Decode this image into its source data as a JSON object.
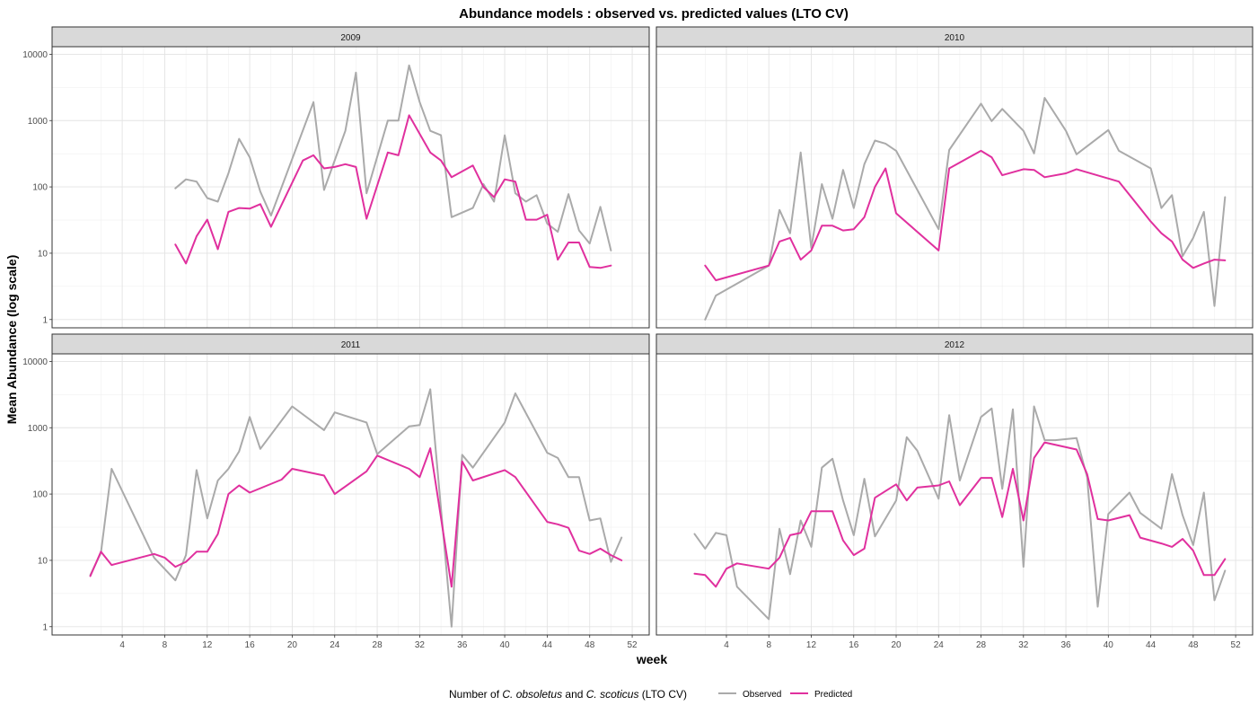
{
  "chart_data": {
    "type": "line",
    "title": "Abundance models : observed vs. predicted values (LTO CV)",
    "xlabel": "week",
    "ylabel": "Mean Abundance (log scale)",
    "y_scale": "log10",
    "ylim": [
      0.75,
      13000
    ],
    "xlim": [
      -2.6,
      53.6
    ],
    "x_ticks": [
      4,
      8,
      12,
      16,
      20,
      24,
      28,
      32,
      36,
      40,
      44,
      48,
      52
    ],
    "y_ticks": [
      1,
      10,
      100,
      1000,
      10000
    ],
    "y_tick_labels": [
      "1",
      "10",
      "100",
      "1000",
      "10000"
    ],
    "grid": true,
    "legend_position": "bottom",
    "legend_title_parts": [
      {
        "text": "Number of ",
        "italic": false
      },
      {
        "text": "C. obsoletus",
        "italic": true
      },
      {
        "text": " and ",
        "italic": false
      },
      {
        "text": "C. scoticus",
        "italic": true
      },
      {
        "text": " (LTO CV)",
        "italic": false
      }
    ],
    "series_colors": {
      "Observed": "#aaaaaa",
      "Predicted": "#e0309e"
    },
    "panels": [
      {
        "label": "2009",
        "series": [
          {
            "name": "Observed",
            "x": [
              9,
              10,
              11,
              12,
              13,
              14,
              15,
              16,
              17,
              18,
              22,
              23,
              25,
              26,
              27,
              29,
              30,
              31,
              32,
              33,
              34,
              35,
              37,
              38,
              39,
              40,
              41,
              42,
              43,
              44,
              45,
              46,
              47,
              48,
              49,
              50
            ],
            "y": [
              95,
              130,
              120,
              68,
              60,
              160,
              530,
              280,
              85,
              37,
              1900,
              90,
              700,
              5300,
              80,
              1000,
              1000,
              6800,
              1900,
              700,
              600,
              35,
              48,
              110,
              60,
              600,
              80,
              60,
              75,
              28,
              21,
              78,
              22,
              14,
              50,
              11
            ]
          },
          {
            "name": "Predicted",
            "x": [
              9,
              10,
              11,
              12,
              13,
              14,
              15,
              16,
              17,
              18,
              21,
              22,
              23,
              24,
              25,
              26,
              27,
              29,
              30,
              31,
              33,
              34,
              35,
              37,
              38,
              39,
              40,
              41,
              42,
              43,
              44,
              45,
              46,
              47,
              48,
              49,
              50
            ],
            "y": [
              13.5,
              7,
              18,
              32,
              11.5,
              42,
              48,
              47,
              55,
              25,
              250,
              300,
              190,
              200,
              220,
              200,
              33,
              330,
              300,
              1200,
              330,
              250,
              140,
              210,
              100,
              70,
              130,
              120,
              32,
              32,
              38,
              8,
              14.5,
              14.5,
              6.2,
              6,
              6.5
            ]
          }
        ]
      },
      {
        "label": "2010",
        "series": [
          {
            "name": "Observed",
            "x": [
              2,
              3,
              8,
              9,
              10,
              11,
              12,
              13,
              14,
              15,
              16,
              17,
              18,
              19,
              20,
              24,
              25,
              28,
              29,
              30,
              32,
              33,
              34,
              36,
              37,
              40,
              41,
              44,
              45,
              46,
              47,
              48,
              49,
              50,
              51
            ],
            "y": [
              1,
              2.3,
              6.5,
              45,
              20,
              330,
              12,
              110,
              33,
              180,
              48,
              220,
              500,
              450,
              350,
              23,
              360,
              1800,
              980,
              1500,
              700,
              320,
              2200,
              700,
              310,
              720,
              350,
              190,
              48,
              75,
              9,
              17,
              42,
              1.6,
              70
            ]
          },
          {
            "name": "Predicted",
            "x": [
              2,
              3,
              8,
              9,
              10,
              11,
              12,
              13,
              14,
              15,
              16,
              17,
              18,
              19,
              20,
              24,
              25,
              28,
              29,
              30,
              32,
              33,
              34,
              36,
              37,
              41,
              44,
              45,
              46,
              47,
              48,
              49,
              50,
              51
            ],
            "y": [
              6.5,
              3.9,
              6.5,
              15,
              17,
              8,
              11,
              26,
              26,
              22,
              23,
              35,
              100,
              190,
              40,
              11,
              190,
              350,
              280,
              150,
              185,
              180,
              140,
              160,
              185,
              120,
              30,
              20,
              15,
              8,
              6,
              7,
              8,
              7.8
            ]
          }
        ]
      },
      {
        "label": "2011",
        "series": [
          {
            "name": "Observed",
            "x": [
              1,
              2,
              3,
              7,
              9,
              10,
              11,
              12,
              13,
              14,
              15,
              16,
              17,
              20,
              23,
              24,
              27,
              28,
              31,
              32,
              33,
              35,
              36,
              37,
              40,
              41,
              44,
              45,
              46,
              47,
              48,
              49,
              50,
              51
            ],
            "y": [
              6,
              13,
              240,
              11,
              5,
              12,
              230,
              43,
              160,
              240,
              440,
              1450,
              480,
              2100,
              920,
              1700,
              1200,
              400,
              1050,
              1100,
              3800,
              1,
              390,
              250,
              1200,
              3300,
              420,
              350,
              180,
              180,
              40,
              43,
              9.5,
              22
            ]
          },
          {
            "name": "Predicted",
            "x": [
              1,
              2,
              3,
              7,
              8,
              9,
              10,
              11,
              12,
              13,
              14,
              15,
              16,
              19,
              20,
              23,
              24,
              27,
              28,
              31,
              32,
              33,
              35,
              36,
              37,
              40,
              41,
              44,
              45,
              46,
              47,
              48,
              49,
              50,
              51
            ],
            "y": [
              5.8,
              13.5,
              8.5,
              12.5,
              11,
              8,
              9.5,
              13.5,
              13.5,
              25,
              100,
              135,
              105,
              165,
              240,
              190,
              100,
              220,
              380,
              240,
              180,
              490,
              4,
              310,
              160,
              230,
              180,
              38,
              35,
              31,
              14,
              12.5,
              15,
              12,
              10
            ]
          }
        ]
      },
      {
        "label": "2012",
        "series": [
          {
            "name": "Observed",
            "x": [
              1,
              2,
              3,
              4,
              5,
              8,
              9,
              10,
              11,
              12,
              13,
              14,
              15,
              16,
              17,
              18,
              20,
              21,
              22,
              24,
              25,
              26,
              28,
              29,
              30,
              31,
              32,
              33,
              34,
              35,
              37,
              38,
              39,
              40,
              42,
              43,
              45,
              46,
              47,
              48,
              49,
              50,
              51
            ],
            "y": [
              25,
              15,
              26,
              24,
              4,
              1.3,
              30,
              6.2,
              40,
              16,
              250,
              340,
              80,
              24,
              170,
              23,
              80,
              720,
              450,
              85,
              1550,
              160,
              1450,
              1950,
              120,
              1900,
              8,
              2100,
              650,
              650,
              700,
              180,
              2,
              50,
              105,
              52,
              30,
              200,
              48,
              17,
              105,
              2.5,
              7
            ]
          },
          {
            "name": "Predicted",
            "x": [
              1,
              2,
              3,
              4,
              5,
              8,
              9,
              10,
              11,
              12,
              14,
              15,
              16,
              17,
              18,
              20,
              21,
              22,
              24,
              25,
              26,
              28,
              29,
              30,
              31,
              32,
              33,
              34,
              37,
              38,
              39,
              40,
              42,
              43,
              45,
              46,
              47,
              48,
              49,
              50,
              51
            ],
            "y": [
              6.3,
              6,
              4,
              7.5,
              9,
              7.5,
              11,
              24,
              26,
              55,
              55,
              20,
              12,
              15,
              88,
              140,
              80,
              125,
              135,
              155,
              68,
              175,
              175,
              45,
              240,
              40,
              350,
              600,
              470,
              200,
              42,
              40,
              48,
              22,
              18,
              16,
              21,
              14,
              6,
              6,
              10.5
            ]
          }
        ]
      }
    ]
  }
}
